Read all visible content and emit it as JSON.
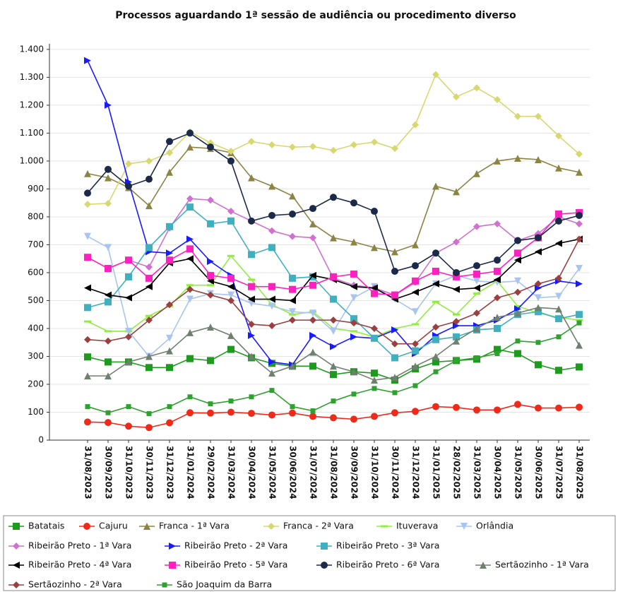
{
  "chart_data": {
    "type": "line",
    "title": "Processos aguardando 1ª sessão de audiência ou procedimento diverso",
    "categories": [
      "31/08/2023",
      "30/09/2023",
      "31/10/2023",
      "30/11/2023",
      "31/12/2023",
      "31/01/2024",
      "29/02/2024",
      "31/03/2024",
      "30/04/2024",
      "31/05/2024",
      "30/06/2024",
      "31/07/2024",
      "31/08/2024",
      "30/09/2024",
      "31/10/2024",
      "30/11/2024",
      "31/12/2024",
      "31/01/2025",
      "28/02/2025",
      "31/03/2025",
      "30/04/2025",
      "31/05/2025",
      "30/06/2025",
      "31/07/2025",
      "31/08/2025"
    ],
    "ylim": [
      0,
      1420
    ],
    "yticks": [
      0,
      100,
      200,
      300,
      400,
      500,
      600,
      700,
      800,
      900,
      {
        "value": 1000,
        "label": "1.000"
      },
      {
        "value": 1100,
        "label": "1.100"
      },
      {
        "value": 1200,
        "label": "1.200"
      },
      {
        "value": 1300,
        "label": "1.300"
      },
      {
        "value": 1400,
        "label": "1.400"
      }
    ],
    "grid": true,
    "legend": "bottom",
    "series": [
      {
        "name": "Batatais",
        "color": "#1e9a1e",
        "marker": "square",
        "values": [
          298,
          280,
          280,
          260,
          260,
          292,
          285,
          325,
          295,
          275,
          265,
          265,
          235,
          245,
          240,
          215,
          255,
          280,
          285,
          290,
          325,
          310,
          270,
          250,
          262
        ]
      },
      {
        "name": "Cajuru",
        "color": "#ee2a1a",
        "marker": "circle",
        "values": [
          65,
          63,
          50,
          45,
          62,
          98,
          97,
          100,
          96,
          90,
          97,
          85,
          80,
          75,
          85,
          98,
          103,
          120,
          117,
          108,
          108,
          128,
          115,
          115,
          118
        ]
      },
      {
        "name": "Franca - 1ª Vara",
        "color": "#8b8445",
        "marker": "triangle-up",
        "values": [
          955,
          940,
          905,
          840,
          960,
          1050,
          1045,
          1030,
          940,
          910,
          875,
          775,
          725,
          710,
          690,
          675,
          700,
          910,
          890,
          955,
          1000,
          1010,
          1005,
          975,
          960
        ]
      },
      {
        "name": "Franca - 2ª Vara",
        "color": "#d8d870",
        "marker": "diamond",
        "values": [
          845,
          848,
          990,
          1000,
          1030,
          1105,
          1065,
          1035,
          1070,
          1058,
          1050,
          1052,
          1038,
          1058,
          1068,
          1045,
          1130,
          1310,
          1230,
          1262,
          1220,
          1160,
          1160,
          1090,
          1025
        ]
      },
      {
        "name": "Ituverava",
        "color": "#90ee40",
        "marker": "bar",
        "values": [
          425,
          390,
          390,
          445,
          480,
          555,
          555,
          660,
          575,
          485,
          450,
          460,
          400,
          390,
          370,
          400,
          415,
          495,
          450,
          525,
          570,
          480,
          455,
          440,
          430
        ]
      },
      {
        "name": "Orlândia",
        "color": "#a8c4f0",
        "marker": "triangle-down",
        "values": [
          730,
          690,
          390,
          300,
          365,
          505,
          525,
          520,
          490,
          480,
          460,
          455,
          390,
          510,
          550,
          505,
          460,
          560,
          590,
          570,
          565,
          570,
          510,
          515,
          615
        ]
      },
      {
        "name": "Ribeirão Preto - 1ª Vara",
        "color": "#d070d0",
        "marker": "diamond",
        "values": [
          655,
          615,
          645,
          620,
          760,
          865,
          860,
          820,
          785,
          750,
          730,
          725,
          580,
          555,
          545,
          520,
          565,
          670,
          710,
          765,
          775,
          715,
          740,
          800,
          775
        ]
      },
      {
        "name": "Ribeirão Preto - 2ª Vara",
        "color": "#1a1aff",
        "marker": "arrow-right",
        "values": [
          1360,
          1200,
          925,
          675,
          670,
          720,
          640,
          590,
          375,
          280,
          270,
          375,
          335,
          370,
          365,
          395,
          310,
          375,
          410,
          410,
          430,
          470,
          545,
          570,
          560
        ]
      },
      {
        "name": "Ribeirão Preto - 3ª Vara",
        "color": "#40b0c0",
        "marker": "square",
        "values": [
          475,
          495,
          585,
          690,
          765,
          835,
          775,
          785,
          665,
          690,
          580,
          585,
          505,
          435,
          365,
          295,
          320,
          360,
          370,
          395,
          400,
          450,
          460,
          435,
          450
        ]
      },
      {
        "name": "Ribeirão Preto - 4ª Vara",
        "color": "#000000",
        "marker": "arrow-left",
        "values": [
          545,
          520,
          510,
          550,
          635,
          650,
          570,
          550,
          505,
          505,
          500,
          590,
          575,
          550,
          545,
          505,
          530,
          560,
          540,
          545,
          575,
          645,
          675,
          705,
          720
        ]
      },
      {
        "name": "Ribeirão Preto - 5ª Vara",
        "color": "#ff20c0",
        "marker": "square",
        "values": [
          655,
          615,
          645,
          580,
          645,
          685,
          590,
          580,
          550,
          550,
          540,
          555,
          585,
          595,
          525,
          520,
          570,
          605,
          585,
          595,
          605,
          670,
          725,
          810,
          815
        ]
      },
      {
        "name": "Ribeirão Preto - 6ª Vara",
        "color": "#1c2a4a",
        "marker": "circle",
        "values": [
          885,
          970,
          910,
          935,
          1070,
          1100,
          1050,
          1000,
          785,
          805,
          810,
          830,
          870,
          850,
          820,
          605,
          625,
          670,
          600,
          625,
          645,
          715,
          725,
          785,
          805
        ]
      },
      {
        "name": "Sertãozinho - 1ª Vara",
        "color": "#708070",
        "marker": "triangle-up",
        "values": [
          230,
          230,
          280,
          300,
          320,
          385,
          405,
          375,
          300,
          240,
          265,
          315,
          265,
          245,
          215,
          225,
          265,
          300,
          355,
          400,
          440,
          455,
          475,
          470,
          340
        ]
      },
      {
        "name": "Sertãozinho - 2ª Vara",
        "color": "#9a4040",
        "marker": "diamond",
        "values": [
          360,
          355,
          370,
          430,
          485,
          540,
          520,
          500,
          415,
          410,
          430,
          430,
          430,
          420,
          400,
          345,
          345,
          405,
          425,
          455,
          510,
          530,
          560,
          580,
          720
        ]
      },
      {
        "name": "São Joaquim da Barra",
        "color": "#30a030",
        "marker": "square-small",
        "values": [
          120,
          98,
          120,
          95,
          120,
          155,
          130,
          140,
          155,
          178,
          120,
          105,
          140,
          165,
          185,
          170,
          195,
          245,
          285,
          295,
          310,
          355,
          350,
          370,
          420
        ]
      }
    ]
  }
}
